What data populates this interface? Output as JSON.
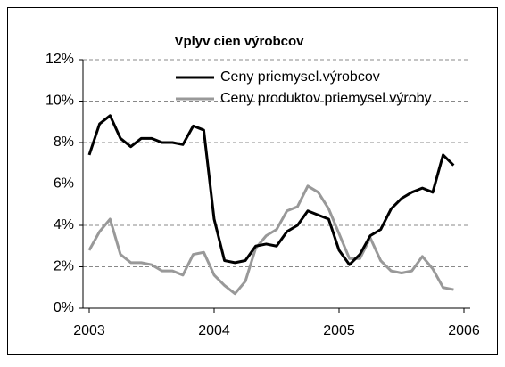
{
  "chart_data": {
    "type": "line",
    "title": "Vplyv cien výrobcov",
    "x": [
      2003,
      2003.083,
      2003.167,
      2003.25,
      2003.333,
      2003.417,
      2003.5,
      2003.583,
      2003.667,
      2003.75,
      2003.833,
      2003.917,
      2004,
      2004.083,
      2004.167,
      2004.25,
      2004.333,
      2004.417,
      2004.5,
      2004.583,
      2004.667,
      2004.75,
      2004.833,
      2004.917,
      2005,
      2005.083,
      2005.167,
      2005.25,
      2005.333,
      2005.417,
      2005.5,
      2005.583,
      2005.667,
      2005.75,
      2005.833,
      2005.917
    ],
    "series": [
      {
        "name": "Ceny priemysel.výrobcov",
        "color": "#000000",
        "values": [
          7.4,
          8.9,
          9.3,
          8.2,
          7.8,
          8.2,
          8.2,
          8.0,
          8.0,
          7.9,
          8.8,
          8.6,
          4.3,
          2.3,
          2.2,
          2.3,
          3.0,
          3.1,
          3.0,
          3.7,
          4.0,
          4.7,
          4.5,
          4.3,
          2.8,
          2.1,
          2.6,
          3.5,
          3.8,
          4.8,
          5.3,
          5.6,
          5.8,
          5.6,
          7.4,
          6.9
        ]
      },
      {
        "name": "Ceny produktov priemysel.výroby",
        "color": "#999999",
        "values": [
          2.8,
          3.7,
          4.3,
          2.6,
          2.2,
          2.2,
          2.1,
          1.8,
          1.8,
          1.6,
          2.6,
          2.7,
          1.6,
          1.1,
          0.7,
          1.3,
          2.9,
          3.5,
          3.8,
          4.7,
          4.9,
          5.9,
          5.6,
          4.8,
          3.6,
          2.4,
          2.4,
          3.4,
          2.3,
          1.8,
          1.7,
          1.8,
          2.5,
          1.9,
          1.0,
          0.9
        ]
      }
    ],
    "xlim": [
      2002.95,
      2006.05
    ],
    "xticks": [
      2003,
      2004,
      2005,
      2006
    ],
    "ylim": [
      0,
      12
    ],
    "yticks": [
      {
        "value": 0,
        "label": "0%"
      },
      {
        "value": 2,
        "label": "2%"
      },
      {
        "value": 4,
        "label": "4%"
      },
      {
        "value": 6,
        "label": "6%"
      },
      {
        "value": 8,
        "label": "8%"
      },
      {
        "value": 10,
        "label": "10%"
      },
      {
        "value": 12,
        "label": "12%"
      }
    ],
    "grid": true,
    "legend": "top-left"
  }
}
